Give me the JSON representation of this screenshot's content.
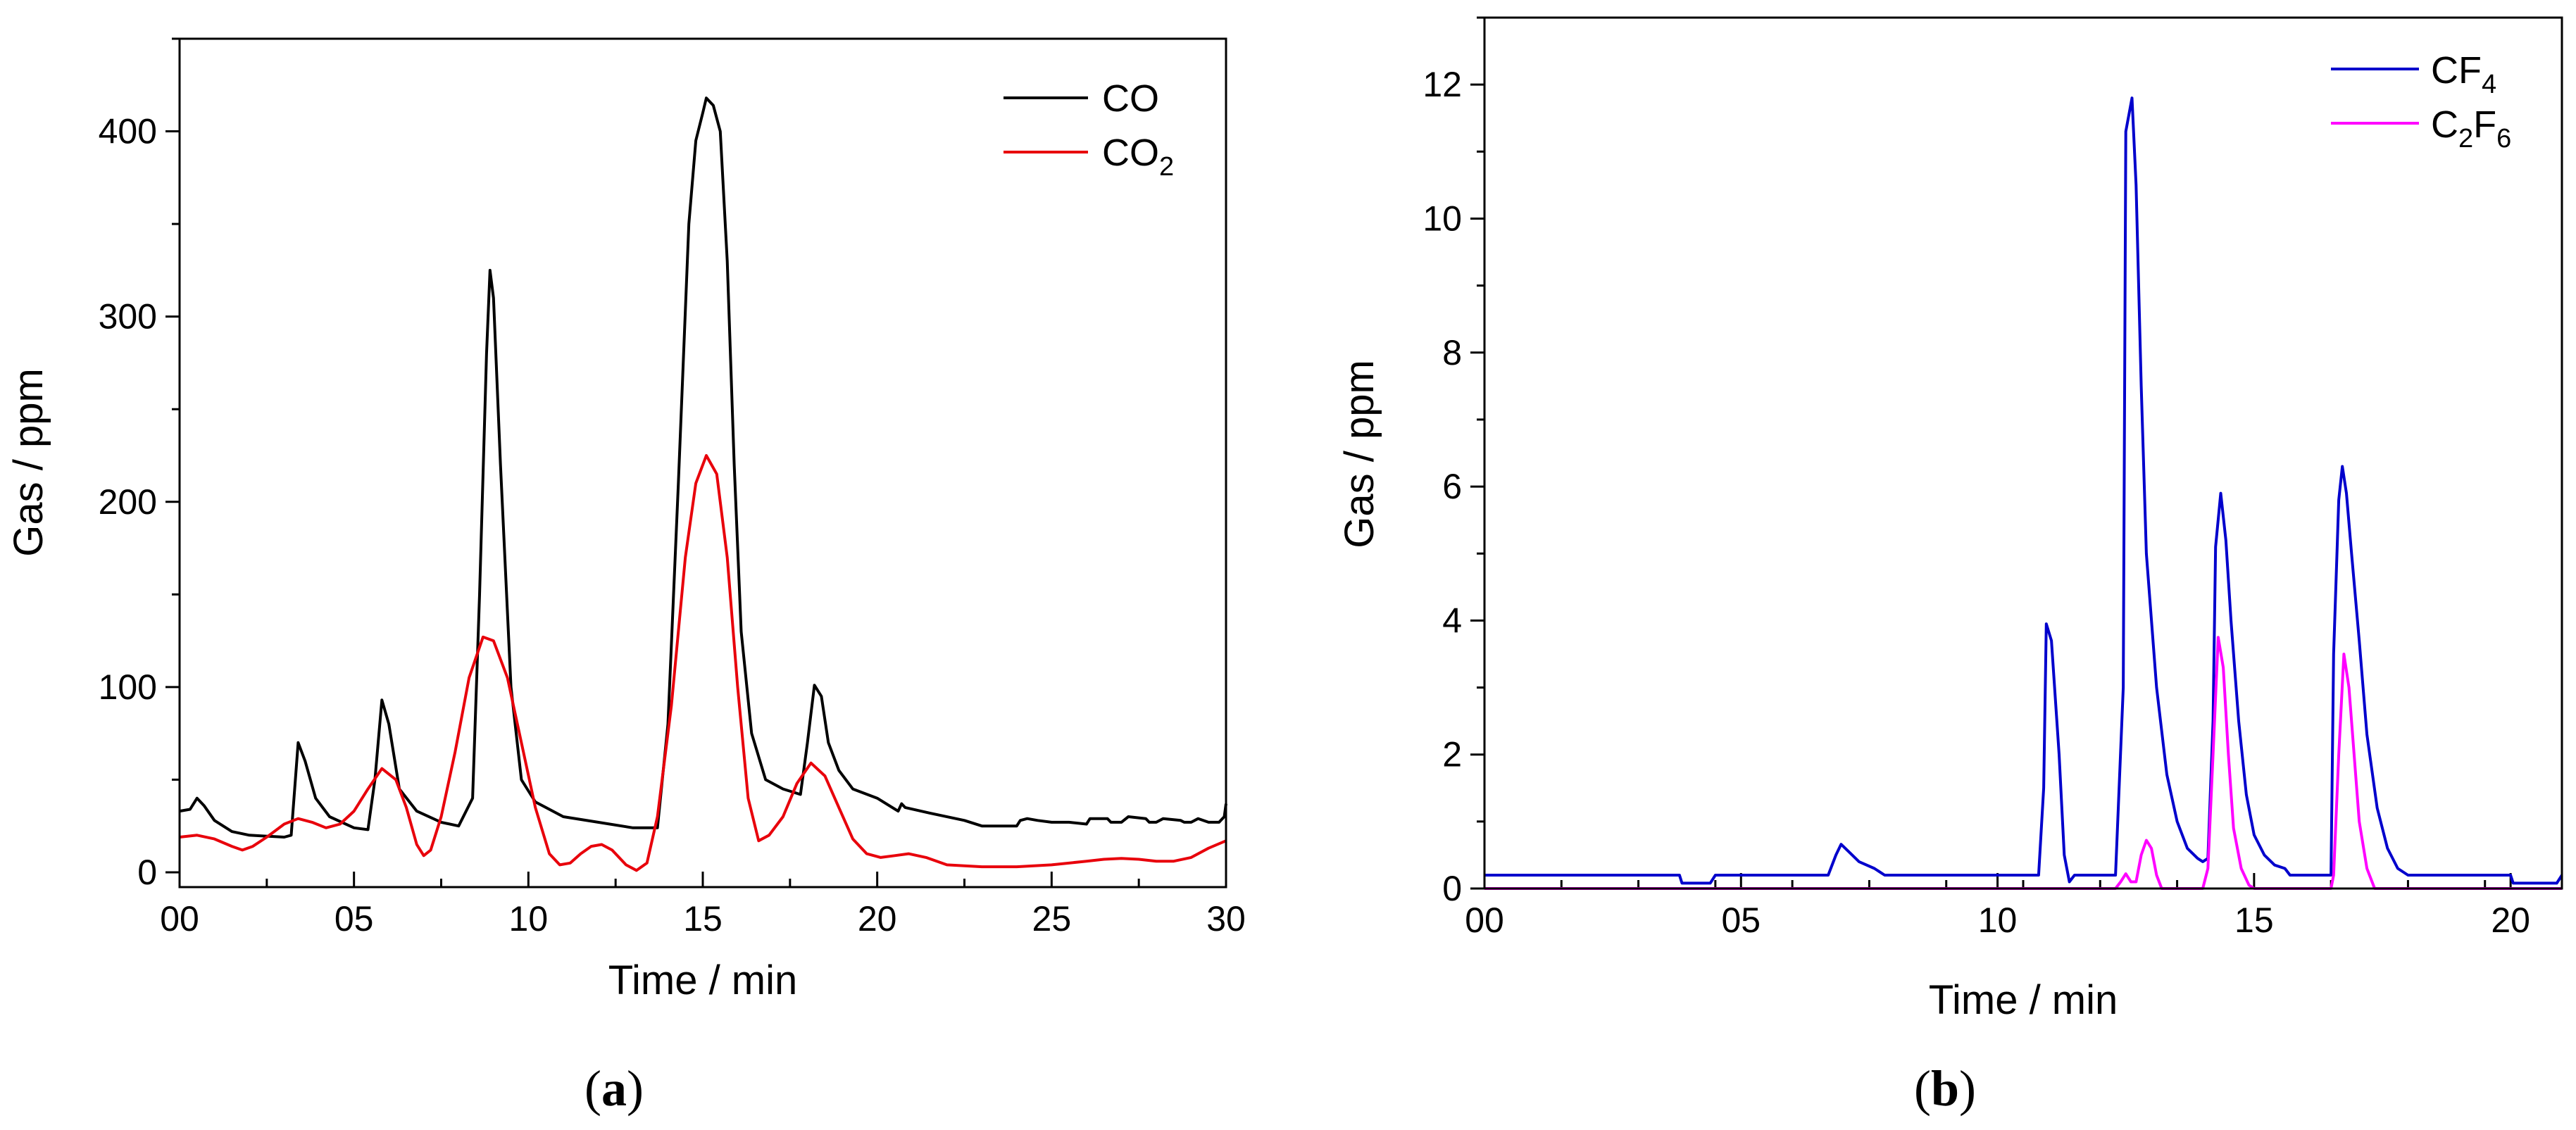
{
  "colors": {
    "co": "#000000",
    "co2": "#e8000b",
    "cf4": "#0000cc",
    "c2f6": "#ff00ff",
    "axis": "#000000",
    "background": "#ffffff"
  },
  "chart_data": [
    {
      "panel": "a",
      "type": "line",
      "caption_open": "(",
      "caption_label": "a",
      "caption_close": ")",
      "xlabel": "Time / min",
      "ylabel": "Gas / ppm",
      "xlim": [
        0,
        30
      ],
      "ylim": [
        -8,
        450
      ],
      "x_ticks": [
        0,
        5,
        10,
        15,
        20,
        25,
        30
      ],
      "x_tick_labels": [
        "00",
        "05",
        "10",
        "15",
        "20",
        "25",
        "30"
      ],
      "x_minor_step": 2.5,
      "y_ticks": [
        0,
        100,
        200,
        300,
        400
      ],
      "y_tick_labels": [
        "0",
        "100",
        "200",
        "300",
        "400"
      ],
      "y_minor_step": 50,
      "legend_position": "top-right",
      "series": [
        {
          "name": "CO",
          "legend_main": "CO",
          "legend_sub": "",
          "color_key": "co",
          "points": [
            [
              0,
              33
            ],
            [
              0.3,
              34
            ],
            [
              0.5,
              40
            ],
            [
              0.7,
              36
            ],
            [
              1,
              28
            ],
            [
              1.5,
              22
            ],
            [
              2,
              20
            ],
            [
              3,
              19
            ],
            [
              3.2,
              20
            ],
            [
              3.4,
              70
            ],
            [
              3.6,
              60
            ],
            [
              3.9,
              40
            ],
            [
              4.3,
              30
            ],
            [
              5,
              24
            ],
            [
              5.4,
              23
            ],
            [
              5.6,
              50
            ],
            [
              5.8,
              93
            ],
            [
              6,
              80
            ],
            [
              6.3,
              45
            ],
            [
              6.8,
              33
            ],
            [
              7.5,
              27
            ],
            [
              8,
              25
            ],
            [
              8.4,
              40
            ],
            [
              8.6,
              150
            ],
            [
              8.8,
              280
            ],
            [
              8.9,
              325
            ],
            [
              9.0,
              310
            ],
            [
              9.2,
              220
            ],
            [
              9.5,
              100
            ],
            [
              9.8,
              50
            ],
            [
              10.2,
              38
            ],
            [
              11,
              30
            ],
            [
              12,
              27
            ],
            [
              13,
              24
            ],
            [
              13.7,
              24
            ],
            [
              14.0,
              80
            ],
            [
              14.3,
              210
            ],
            [
              14.6,
              350
            ],
            [
              14.8,
              395
            ],
            [
              15.0,
              410
            ],
            [
              15.1,
              418
            ],
            [
              15.3,
              414
            ],
            [
              15.5,
              400
            ],
            [
              15.7,
              330
            ],
            [
              15.9,
              220
            ],
            [
              16.1,
              130
            ],
            [
              16.4,
              75
            ],
            [
              16.8,
              50
            ],
            [
              17.3,
              45
            ],
            [
              17.8,
              42
            ],
            [
              18.0,
              70
            ],
            [
              18.2,
              101
            ],
            [
              18.4,
              95
            ],
            [
              18.6,
              70
            ],
            [
              18.9,
              55
            ],
            [
              19.3,
              45
            ],
            [
              20,
              40
            ],
            [
              20.6,
              33
            ],
            [
              20.7,
              37
            ],
            [
              20.8,
              35
            ],
            [
              21.5,
              32
            ],
            [
              22.5,
              28
            ],
            [
              23,
              25
            ],
            [
              24,
              25
            ],
            [
              24.1,
              28
            ],
            [
              24.3,
              29
            ],
            [
              24.6,
              28
            ],
            [
              25,
              27
            ],
            [
              25.5,
              27
            ],
            [
              26,
              26
            ],
            [
              26.1,
              29
            ],
            [
              26.6,
              29
            ],
            [
              26.7,
              27
            ],
            [
              27,
              27
            ],
            [
              27.2,
              30
            ],
            [
              27.7,
              29
            ],
            [
              27.8,
              27
            ],
            [
              28,
              27
            ],
            [
              28.2,
              29
            ],
            [
              28.7,
              28
            ],
            [
              28.8,
              27
            ],
            [
              29,
              27
            ],
            [
              29.2,
              29
            ],
            [
              29.5,
              27
            ],
            [
              29.8,
              27
            ],
            [
              29.95,
              30
            ],
            [
              30,
              37
            ]
          ]
        },
        {
          "name": "CO2",
          "legend_main": "CO",
          "legend_sub": "2",
          "color_key": "co2",
          "points": [
            [
              0,
              19
            ],
            [
              0.5,
              20
            ],
            [
              1,
              18
            ],
            [
              1.5,
              14
            ],
            [
              1.8,
              12
            ],
            [
              2.1,
              14
            ],
            [
              2.5,
              19
            ],
            [
              3,
              26
            ],
            [
              3.4,
              29
            ],
            [
              3.8,
              27
            ],
            [
              4.2,
              24
            ],
            [
              4.6,
              26
            ],
            [
              5,
              33
            ],
            [
              5.4,
              45
            ],
            [
              5.8,
              56
            ],
            [
              6.2,
              50
            ],
            [
              6.5,
              35
            ],
            [
              6.8,
              15
            ],
            [
              7.0,
              9
            ],
            [
              7.2,
              12
            ],
            [
              7.5,
              30
            ],
            [
              7.9,
              65
            ],
            [
              8.3,
              105
            ],
            [
              8.7,
              127
            ],
            [
              9.0,
              125
            ],
            [
              9.4,
              105
            ],
            [
              9.8,
              70
            ],
            [
              10.2,
              35
            ],
            [
              10.6,
              10
            ],
            [
              10.9,
              4
            ],
            [
              11.2,
              5
            ],
            [
              11.5,
              10
            ],
            [
              11.8,
              14
            ],
            [
              12.1,
              15
            ],
            [
              12.4,
              12
            ],
            [
              12.8,
              4
            ],
            [
              13.1,
              1
            ],
            [
              13.4,
              5
            ],
            [
              13.7,
              30
            ],
            [
              14.1,
              90
            ],
            [
              14.5,
              170
            ],
            [
              14.8,
              210
            ],
            [
              15.1,
              225
            ],
            [
              15.4,
              215
            ],
            [
              15.7,
              170
            ],
            [
              16.0,
              100
            ],
            [
              16.3,
              40
            ],
            [
              16.6,
              17
            ],
            [
              16.9,
              20
            ],
            [
              17.3,
              30
            ],
            [
              17.7,
              48
            ],
            [
              18.1,
              59
            ],
            [
              18.5,
              52
            ],
            [
              18.9,
              35
            ],
            [
              19.3,
              18
            ],
            [
              19.7,
              10
            ],
            [
              20.1,
              8
            ],
            [
              20.5,
              9
            ],
            [
              20.9,
              10
            ],
            [
              21.4,
              8
            ],
            [
              22,
              4
            ],
            [
              23,
              3
            ],
            [
              24,
              3
            ],
            [
              25,
              4
            ],
            [
              26,
              6
            ],
            [
              26.5,
              7
            ],
            [
              27,
              7.5
            ],
            [
              27.5,
              7
            ],
            [
              28,
              6
            ],
            [
              28.5,
              6
            ],
            [
              29,
              8
            ],
            [
              29.5,
              13
            ],
            [
              30,
              17
            ]
          ]
        }
      ]
    },
    {
      "panel": "b",
      "type": "line",
      "caption_open": "(",
      "caption_label": "b",
      "caption_close": ")",
      "xlabel": "Time / min",
      "ylabel": "Gas / ppm",
      "xlim": [
        0,
        21
      ],
      "ylim": [
        0,
        13
      ],
      "x_ticks": [
        0,
        5,
        10,
        15,
        20
      ],
      "x_tick_labels": [
        "00",
        "05",
        "10",
        "15",
        "20"
      ],
      "x_minor_step": 1.5,
      "y_ticks": [
        0,
        2,
        4,
        6,
        8,
        10,
        12
      ],
      "y_tick_labels": [
        "0",
        "2",
        "4",
        "6",
        "8",
        "10",
        "12"
      ],
      "y_minor_step": 1,
      "legend_position": "top-right",
      "series": [
        {
          "name": "CF4",
          "legend_main": "CF",
          "legend_sub": "4",
          "color_key": "cf4",
          "points": [
            [
              0,
              0.2
            ],
            [
              3.8,
              0.2
            ],
            [
              3.85,
              0.08
            ],
            [
              4.4,
              0.08
            ],
            [
              4.5,
              0.2
            ],
            [
              6.7,
              0.2
            ],
            [
              6.85,
              0.5
            ],
            [
              6.95,
              0.66
            ],
            [
              7.1,
              0.55
            ],
            [
              7.3,
              0.4
            ],
            [
              7.6,
              0.3
            ],
            [
              7.8,
              0.2
            ],
            [
              10.8,
              0.2
            ],
            [
              10.9,
              1.5
            ],
            [
              10.95,
              3.95
            ],
            [
              11.05,
              3.7
            ],
            [
              11.2,
              2
            ],
            [
              11.3,
              0.5
            ],
            [
              11.4,
              0.1
            ],
            [
              11.5,
              0.2
            ],
            [
              12.3,
              0.2
            ],
            [
              12.45,
              3
            ],
            [
              12.5,
              11.3
            ],
            [
              12.62,
              11.8
            ],
            [
              12.7,
              10.5
            ],
            [
              12.8,
              7.5
            ],
            [
              12.9,
              5
            ],
            [
              13.1,
              3
            ],
            [
              13.3,
              1.7
            ],
            [
              13.5,
              1
            ],
            [
              13.7,
              0.6
            ],
            [
              13.9,
              0.45
            ],
            [
              14.0,
              0.4
            ],
            [
              14.1,
              0.45
            ],
            [
              14.2,
              2.5
            ],
            [
              14.25,
              5.1
            ],
            [
              14.35,
              5.9
            ],
            [
              14.45,
              5.2
            ],
            [
              14.55,
              4
            ],
            [
              14.7,
              2.5
            ],
            [
              14.85,
              1.4
            ],
            [
              15,
              0.8
            ],
            [
              15.2,
              0.5
            ],
            [
              15.4,
              0.35
            ],
            [
              15.6,
              0.3
            ],
            [
              15.7,
              0.2
            ],
            [
              16.5,
              0.2
            ],
            [
              16.55,
              3.5
            ],
            [
              16.65,
              5.8
            ],
            [
              16.72,
              6.3
            ],
            [
              16.8,
              5.9
            ],
            [
              16.9,
              5
            ],
            [
              17.05,
              3.7
            ],
            [
              17.2,
              2.3
            ],
            [
              17.4,
              1.2
            ],
            [
              17.6,
              0.6
            ],
            [
              17.8,
              0.3
            ],
            [
              18,
              0.2
            ],
            [
              20,
              0.2
            ],
            [
              20.05,
              0.08
            ],
            [
              20.9,
              0.08
            ],
            [
              21,
              0.2
            ]
          ]
        },
        {
          "name": "C2F6",
          "legend_main": "C",
          "legend_sub": "2",
          "legend_main2": "F",
          "legend_sub2": "6",
          "color_key": "c2f6",
          "points": [
            [
              0,
              0
            ],
            [
              12.3,
              0
            ],
            [
              12.4,
              0.1
            ],
            [
              12.5,
              0.22
            ],
            [
              12.6,
              0.1
            ],
            [
              12.7,
              0.1
            ],
            [
              12.8,
              0.5
            ],
            [
              12.9,
              0.72
            ],
            [
              13.0,
              0.6
            ],
            [
              13.1,
              0.2
            ],
            [
              13.2,
              0
            ],
            [
              14.0,
              0
            ],
            [
              14.1,
              0.3
            ],
            [
              14.2,
              2
            ],
            [
              14.3,
              3.75
            ],
            [
              14.4,
              3.3
            ],
            [
              14.5,
              2
            ],
            [
              14.6,
              0.9
            ],
            [
              14.75,
              0.3
            ],
            [
              14.9,
              0.05
            ],
            [
              15.0,
              0
            ],
            [
              16.5,
              0
            ],
            [
              16.55,
              0.2
            ],
            [
              16.65,
              2
            ],
            [
              16.75,
              3.5
            ],
            [
              16.85,
              3
            ],
            [
              16.95,
              2
            ],
            [
              17.05,
              1
            ],
            [
              17.2,
              0.3
            ],
            [
              17.35,
              0
            ],
            [
              21,
              0
            ]
          ]
        }
      ]
    }
  ]
}
